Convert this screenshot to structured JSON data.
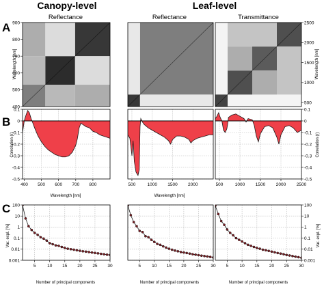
{
  "titles": {
    "canopy": "Canopy-level",
    "leaf": "Leaf-level",
    "panel_a": "A",
    "panel_b": "B",
    "panel_c": "C",
    "sub_canopy": "Reflectance",
    "sub_leaf_refl": "Reflectance",
    "sub_leaf_trans": "Transmittance"
  },
  "axis_labels": {
    "wavelength_nm": "Wavelength [nm]",
    "correlation": "Correlation (r)",
    "var_expl": "Var. expl. [%]",
    "n_pc": "Number of principal components"
  },
  "chart_data": [
    {
      "type": "heatmap",
      "panel": "A",
      "subtitle": "Reflectance",
      "ylabel": "Wavelength [nm]",
      "y_ticks": [
        400,
        500,
        600,
        700,
        800,
        900
      ],
      "ylim": [
        400,
        900
      ],
      "blocks": [
        {
          "x0": 400,
          "x1": 530,
          "y0": 400,
          "y1": 530,
          "shade": 0.55
        },
        {
          "x0": 530,
          "x1": 700,
          "y0": 530,
          "y1": 700,
          "shade": 0.9
        },
        {
          "x0": 700,
          "x1": 900,
          "y0": 700,
          "y1": 900,
          "shade": 0.85
        },
        {
          "x0": 400,
          "x1": 530,
          "y0": 700,
          "y1": 900,
          "shade": 0.35
        },
        {
          "x0": 700,
          "x1": 900,
          "y0": 400,
          "y1": 530,
          "shade": 0.35
        },
        {
          "x0": 530,
          "x1": 700,
          "y0": 700,
          "y1": 900,
          "shade": 0.15
        },
        {
          "x0": 700,
          "x1": 900,
          "y0": 530,
          "y1": 700,
          "shade": 0.15
        },
        {
          "x0": 400,
          "x1": 530,
          "y0": 530,
          "y1": 700,
          "shade": 0.3
        },
        {
          "x0": 530,
          "x1": 700,
          "y0": 400,
          "y1": 530,
          "shade": 0.3
        }
      ]
    },
    {
      "type": "heatmap",
      "panel": "A",
      "subtitle": "Reflectance",
      "ylim": [
        400,
        2500
      ],
      "blocks": [
        {
          "x0": 400,
          "x1": 700,
          "y0": 400,
          "y1": 700,
          "shade": 0.85
        },
        {
          "x0": 700,
          "x1": 2500,
          "y0": 700,
          "y1": 2500,
          "shade": 0.55
        },
        {
          "x0": 400,
          "x1": 700,
          "y0": 700,
          "y1": 2500,
          "shade": 0.1
        },
        {
          "x0": 700,
          "x1": 2500,
          "y0": 400,
          "y1": 700,
          "shade": 0.1
        }
      ]
    },
    {
      "type": "heatmap",
      "panel": "A",
      "subtitle": "Transmittance",
      "ylabel": "Wavelength [nm]",
      "y_ticks": [
        500,
        1000,
        1500,
        2000,
        2500
      ],
      "ylim": [
        400,
        2500
      ],
      "blocks": [
        {
          "x0": 400,
          "x1": 700,
          "y0": 400,
          "y1": 700,
          "shade": 0.8
        },
        {
          "x0": 700,
          "x1": 1300,
          "y0": 700,
          "y1": 1300,
          "shade": 0.75
        },
        {
          "x0": 1300,
          "x1": 1900,
          "y0": 1300,
          "y1": 1900,
          "shade": 0.7
        },
        {
          "x0": 1900,
          "x1": 2500,
          "y0": 1900,
          "y1": 2500,
          "shade": 0.75
        },
        {
          "x0": 1300,
          "x1": 1900,
          "y0": 700,
          "y1": 1300,
          "shade": 0.35
        },
        {
          "x0": 700,
          "x1": 1300,
          "y0": 1300,
          "y1": 1900,
          "shade": 0.35
        },
        {
          "x0": 1900,
          "x1": 2500,
          "y0": 700,
          "y1": 1900,
          "shade": 0.25
        },
        {
          "x0": 700,
          "x1": 1900,
          "y0": 1900,
          "y1": 2500,
          "shade": 0.25
        }
      ]
    },
    {
      "type": "area",
      "panel": "B",
      "xlabel": "Wavelength [nm]",
      "ylabel": "Correlation (r)",
      "x_ticks": [
        400,
        500,
        600,
        700,
        800
      ],
      "y_ticks": [
        0.1,
        0,
        -0.1,
        -0.2,
        -0.3,
        -0.4,
        -0.5
      ],
      "xlim": [
        390,
        900
      ],
      "ylim": [
        -0.5,
        0.1
      ],
      "x": [
        390,
        400,
        410,
        420,
        430,
        440,
        450,
        460,
        480,
        500,
        520,
        540,
        560,
        580,
        600,
        620,
        640,
        660,
        680,
        700,
        710,
        720,
        730,
        740,
        760,
        780,
        800,
        820,
        840,
        860,
        880,
        900
      ],
      "y": [
        -0.1,
        0.0,
        0.05,
        0.09,
        0.07,
        0.02,
        -0.02,
        -0.06,
        -0.13,
        -0.18,
        -0.22,
        -0.25,
        -0.27,
        -0.29,
        -0.3,
        -0.31,
        -0.31,
        -0.3,
        -0.27,
        -0.21,
        -0.15,
        -0.06,
        -0.02,
        -0.03,
        -0.05,
        -0.06,
        -0.09,
        -0.1,
        -0.12,
        -0.13,
        -0.14,
        -0.15
      ]
    },
    {
      "type": "area",
      "panel": "B",
      "xlabel": "Wavelength [nm]",
      "x_ticks": [
        500,
        1000,
        1500,
        2000
      ],
      "xlim": [
        400,
        2500
      ],
      "ylim": [
        -0.5,
        0.1
      ],
      "x": [
        400,
        450,
        500,
        530,
        560,
        600,
        650,
        680,
        700,
        720,
        760,
        800,
        900,
        1000,
        1100,
        1200,
        1300,
        1400,
        1450,
        1500,
        1600,
        1700,
        1800,
        1900,
        1950,
        2000,
        2100,
        2200,
        2300,
        2400,
        2500
      ],
      "y": [
        -0.12,
        -0.15,
        -0.3,
        -0.17,
        -0.35,
        -0.44,
        -0.47,
        -0.42,
        -0.05,
        0.02,
        -0.01,
        -0.03,
        -0.06,
        -0.08,
        -0.1,
        -0.12,
        -0.14,
        -0.17,
        -0.2,
        -0.16,
        -0.13,
        -0.13,
        -0.14,
        -0.16,
        -0.19,
        -0.17,
        -0.15,
        -0.14,
        -0.13,
        -0.12,
        -0.12
      ]
    },
    {
      "type": "area",
      "panel": "B",
      "ylabel": "Correlation (r)",
      "x_ticks": [
        500,
        1000,
        1500,
        2000,
        2500
      ],
      "y_ticks": [
        0.1,
        0,
        -0.1,
        -0.2,
        -0.3,
        -0.4,
        -0.5
      ],
      "xlim": [
        400,
        2500
      ],
      "ylim": [
        -0.5,
        0.1
      ],
      "x": [
        400,
        440,
        480,
        520,
        560,
        600,
        640,
        680,
        700,
        720,
        760,
        800,
        900,
        1000,
        1100,
        1150,
        1200,
        1300,
        1350,
        1400,
        1450,
        1500,
        1600,
        1700,
        1800,
        1850,
        1900,
        1950,
        2000,
        2100,
        2200,
        2300,
        2400,
        2500
      ],
      "y": [
        0.02,
        0.04,
        0.07,
        0.03,
        0.0,
        -0.08,
        -0.1,
        -0.07,
        -0.03,
        0.03,
        0.04,
        0.05,
        0.06,
        0.04,
        0.02,
        -0.01,
        0.02,
        0.01,
        -0.04,
        -0.13,
        -0.18,
        -0.11,
        -0.05,
        -0.04,
        -0.06,
        -0.1,
        -0.14,
        -0.2,
        -0.12,
        -0.05,
        -0.04,
        -0.06,
        -0.1,
        -0.08
      ]
    },
    {
      "type": "line",
      "panel": "C",
      "xlabel": "Number of principal components",
      "ylabel": "Var. expl. [%]",
      "x_ticks": [
        5,
        10,
        15,
        20,
        25,
        30
      ],
      "y_ticks": [
        100,
        10,
        1,
        0.1,
        0.01,
        0.001
      ],
      "y_scale": "log",
      "xlim": [
        1,
        30
      ],
      "ylim": [
        0.001,
        100
      ],
      "x": [
        1,
        2,
        3,
        4,
        5,
        6,
        7,
        8,
        9,
        10,
        11,
        12,
        13,
        14,
        15,
        16,
        17,
        18,
        19,
        20,
        21,
        22,
        23,
        24,
        25,
        26,
        27,
        28,
        29,
        30
      ],
      "y": [
        95,
        6,
        1.2,
        0.55,
        0.3,
        0.2,
        0.12,
        0.09,
        0.06,
        0.035,
        0.028,
        0.022,
        0.02,
        0.016,
        0.013,
        0.011,
        0.01,
        0.009,
        0.008,
        0.0072,
        0.0065,
        0.006,
        0.0055,
        0.005,
        0.0046,
        0.0042,
        0.0038,
        0.0035,
        0.0032,
        0.003
      ]
    },
    {
      "type": "line",
      "panel": "C",
      "xlabel": "Number of principal components",
      "x_ticks": [
        5,
        10,
        15,
        20,
        25,
        30
      ],
      "y_scale": "log",
      "xlim": [
        1,
        30
      ],
      "ylim": [
        0.001,
        100
      ],
      "x": [
        1,
        2,
        3,
        4,
        5,
        6,
        7,
        8,
        9,
        10,
        11,
        12,
        13,
        14,
        15,
        16,
        17,
        18,
        19,
        20,
        21,
        22,
        23,
        24,
        25,
        26,
        27,
        28,
        29,
        30
      ],
      "y": [
        90,
        12,
        2.8,
        1.2,
        0.45,
        0.35,
        0.15,
        0.12,
        0.07,
        0.045,
        0.03,
        0.025,
        0.018,
        0.014,
        0.011,
        0.009,
        0.0075,
        0.0065,
        0.0055,
        0.005,
        0.0045,
        0.004,
        0.0035,
        0.0032,
        0.0029,
        0.0026,
        0.0024,
        0.0022,
        0.002,
        0.0018
      ]
    },
    {
      "type": "line",
      "panel": "C",
      "xlabel": "Number of principal components",
      "ylabel": "Var. expl. [%]",
      "x_ticks": [
        5,
        10,
        15,
        20,
        25,
        30
      ],
      "y_ticks": [
        100,
        10,
        1,
        0.1,
        0.01,
        0.001
      ],
      "y_scale": "log",
      "xlim": [
        1,
        30
      ],
      "ylim": [
        0.001,
        100
      ],
      "x": [
        1,
        2,
        3,
        4,
        5,
        6,
        7,
        8,
        9,
        10,
        11,
        12,
        13,
        14,
        15,
        16,
        17,
        18,
        19,
        20,
        21,
        22,
        23,
        24,
        25,
        26,
        27,
        28,
        29,
        30
      ],
      "y": [
        85,
        15,
        3.5,
        1.6,
        0.6,
        0.3,
        0.18,
        0.1,
        0.07,
        0.05,
        0.035,
        0.025,
        0.02,
        0.016,
        0.013,
        0.011,
        0.009,
        0.008,
        0.007,
        0.006,
        0.0052,
        0.0045,
        0.004,
        0.0035,
        0.003,
        0.0027,
        0.0024,
        0.0021,
        0.0019,
        0.0017
      ]
    }
  ],
  "colors": {
    "fill": "#ef4049",
    "line": "#1a1a1a",
    "marker": "#7a1e24",
    "grid": "#b8b8b8"
  }
}
